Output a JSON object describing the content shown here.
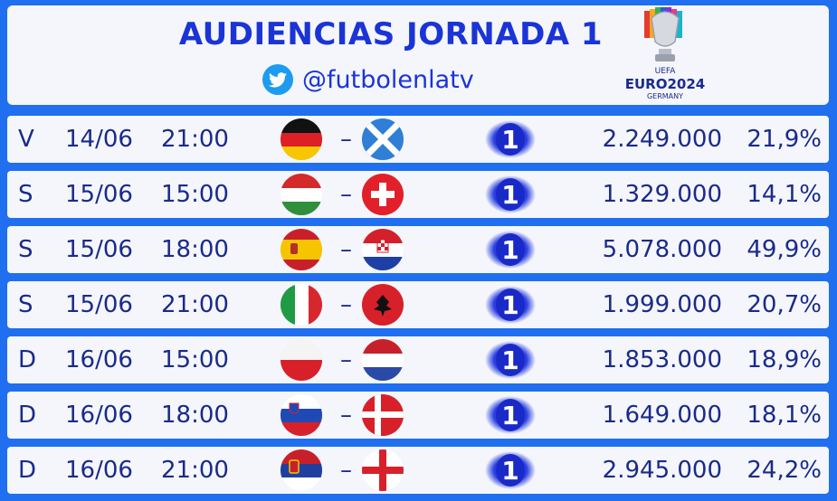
{
  "header": {
    "title": "AUDIENCIAS JORNADA 1",
    "handle": "@futbolenlatv",
    "logo": {
      "line1": "UEFA",
      "line2": "EURO2024",
      "line3": "GERMANY"
    }
  },
  "icons": {
    "social": "twitter-bird-icon",
    "channel": "la1-channel-logo"
  },
  "matches": [
    {
      "day": "V",
      "date": "14/06",
      "time": "21:00",
      "home": "germany",
      "away": "scotland",
      "channel": "1",
      "viewers": "2.249.000",
      "share": "21,9%"
    },
    {
      "day": "S",
      "date": "15/06",
      "time": "15:00",
      "home": "hungary",
      "away": "switzerland",
      "channel": "1",
      "viewers": "1.329.000",
      "share": "14,1%"
    },
    {
      "day": "S",
      "date": "15/06",
      "time": "18:00",
      "home": "spain",
      "away": "croatia",
      "channel": "1",
      "viewers": "5.078.000",
      "share": "49,9%"
    },
    {
      "day": "S",
      "date": "15/06",
      "time": "21:00",
      "home": "italy",
      "away": "albania",
      "channel": "1",
      "viewers": "1.999.000",
      "share": "20,7%"
    },
    {
      "day": "D",
      "date": "16/06",
      "time": "15:00",
      "home": "poland",
      "away": "netherlands",
      "channel": "1",
      "viewers": "1.853.000",
      "share": "18,9%"
    },
    {
      "day": "D",
      "date": "16/06",
      "time": "18:00",
      "home": "slovenia",
      "away": "denmark",
      "channel": "1",
      "viewers": "1.649.000",
      "share": "18,1%"
    },
    {
      "day": "D",
      "date": "16/06",
      "time": "21:00",
      "home": "serbia",
      "away": "england",
      "channel": "1",
      "viewers": "2.945.000",
      "share": "24,2%"
    }
  ],
  "separator": "–",
  "colors": {
    "background": "#1f6ff0",
    "title": "#1a34d6",
    "text": "#1a2a8a",
    "row": "#f4f6fb"
  }
}
